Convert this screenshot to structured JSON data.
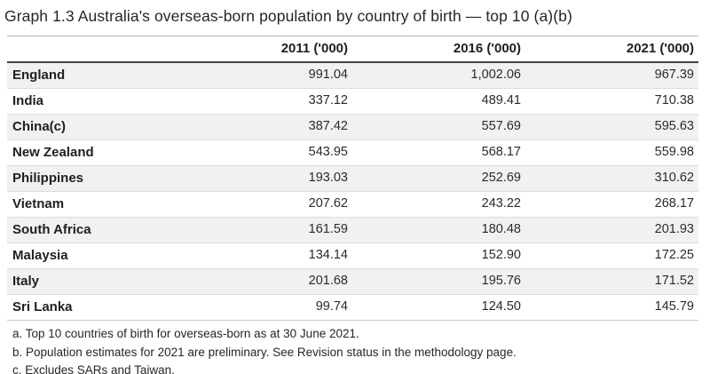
{
  "title": "Graph 1.3 Australia's overseas-born population by country of birth — top 10 (a)(b)",
  "table": {
    "columns": [
      "",
      "2011 ('000)",
      "2016 ('000)",
      "2021 ('000)"
    ],
    "rows": [
      {
        "country": "England",
        "values": [
          "991.04",
          "1,002.06",
          "967.39"
        ]
      },
      {
        "country": "India",
        "values": [
          "337.12",
          "489.41",
          "710.38"
        ]
      },
      {
        "country": "China(c)",
        "values": [
          "387.42",
          "557.69",
          "595.63"
        ]
      },
      {
        "country": "New Zealand",
        "values": [
          "543.95",
          "568.17",
          "559.98"
        ]
      },
      {
        "country": "Philippines",
        "values": [
          "193.03",
          "252.69",
          "310.62"
        ]
      },
      {
        "country": "Vietnam",
        "values": [
          "207.62",
          "243.22",
          "268.17"
        ]
      },
      {
        "country": "South Africa",
        "values": [
          "161.59",
          "180.48",
          "201.93"
        ]
      },
      {
        "country": "Malaysia",
        "values": [
          "134.14",
          "152.90",
          "172.25"
        ]
      },
      {
        "country": "Italy",
        "values": [
          "201.68",
          "195.76",
          "171.52"
        ]
      },
      {
        "country": "Sri Lanka",
        "values": [
          "99.74",
          "124.50",
          "145.79"
        ]
      }
    ]
  },
  "footnotes": [
    "a. Top 10 countries of birth for overseas-born as at 30 June 2021.",
    "b. Population estimates for 2021 are preliminary. See Revision status in the methodology page.",
    "c. Excludes SARs and Taiwan."
  ],
  "colors": {
    "background": "#ffffff",
    "row_stripe": "#f1f1f1",
    "table_top_border": "#b2b2b2",
    "header_bottom_border": "#454545",
    "row_divider": "#dcdcdc",
    "table_bottom_border": "#c9c9c9",
    "text": "#262626"
  },
  "chart_data": {
    "type": "table",
    "title": "Graph 1.3 Australia's overseas-born population by country of birth — top 10 (a)(b)",
    "categories": [
      "England",
      "India",
      "China(c)",
      "New Zealand",
      "Philippines",
      "Vietnam",
      "South Africa",
      "Malaysia",
      "Italy",
      "Sri Lanka"
    ],
    "series": [
      {
        "name": "2011 ('000)",
        "values": [
          991.04,
          337.12,
          387.42,
          543.95,
          193.03,
          207.62,
          161.59,
          134.14,
          201.68,
          99.74
        ]
      },
      {
        "name": "2016 ('000)",
        "values": [
          1002.06,
          489.41,
          557.69,
          568.17,
          252.69,
          243.22,
          180.48,
          152.9,
          195.76,
          124.5
        ]
      },
      {
        "name": "2021 ('000)",
        "values": [
          967.39,
          710.38,
          595.63,
          559.98,
          310.62,
          268.17,
          201.93,
          172.25,
          171.52,
          145.79
        ]
      }
    ],
    "footnotes": [
      "a. Top 10 countries of birth for overseas-born as at 30 June 2021.",
      "b. Population estimates for 2021 are preliminary. See Revision status in the methodology page.",
      "c. Excludes SARs and Taiwan."
    ],
    "layout": "zebra-striped data table, numeric columns right-aligned, country column bold"
  }
}
